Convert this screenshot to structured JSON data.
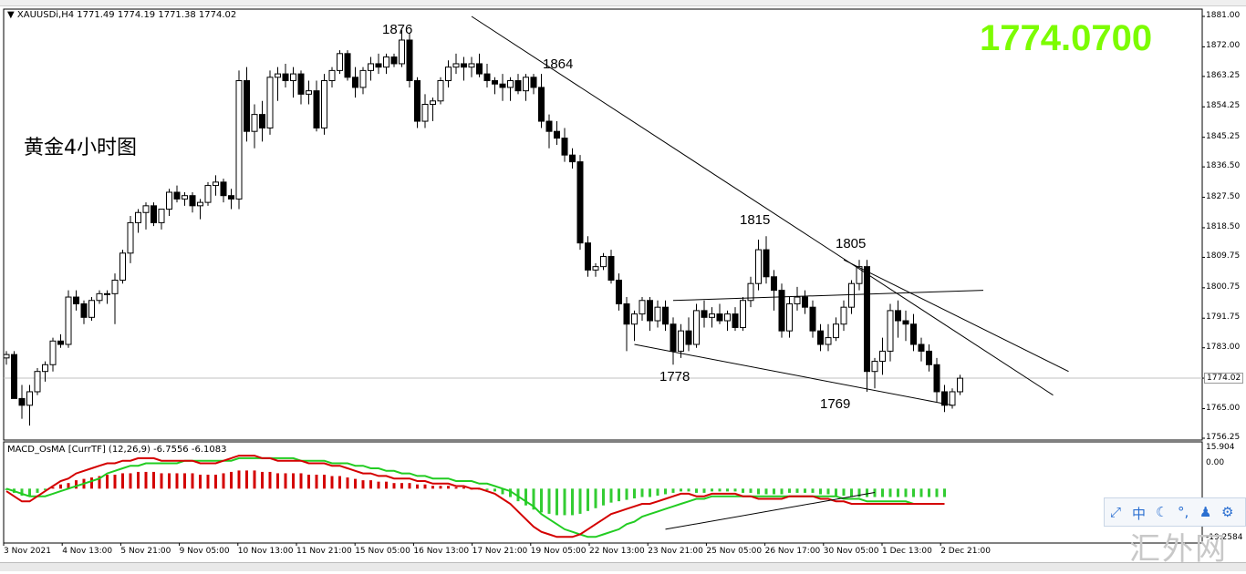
{
  "symbol_header": "XAUUSDi,H4 1771.49 1774.19 1771.38 1774.02",
  "chart_title": "黄金4小时图",
  "current_price_big": "1774.0700",
  "current_price_tag": "1774.02",
  "indicator_header": "MACD_OsMA [CurrTF] (12,26,9) -6.7556 -6.1083",
  "indicator_axis": [
    "15.904",
    "0.00",
    "-19.2584"
  ],
  "price_axis": [
    "1881.00",
    "1872.00",
    "1863.25",
    "1854.25",
    "1845.25",
    "1836.50",
    "1827.50",
    "1818.50",
    "1809.75",
    "1800.75",
    "1791.75",
    "1783.00",
    "1774.02",
    "1765.00",
    "1756.25"
  ],
  "date_axis": [
    "3 Nov 2021",
    "4 Nov 13:00",
    "5 Nov 21:00",
    "9 Nov 05:00",
    "10 Nov 13:00",
    "11 Nov 21:00",
    "15 Nov 05:00",
    "16 Nov 13:00",
    "17 Nov 21:00",
    "19 Nov 05:00",
    "22 Nov 13:00",
    "23 Nov 21:00",
    "25 Nov 05:00",
    "26 Nov 17:00",
    "30 Nov 05:00",
    "1 Dec 13:00",
    "2 Dec 21:00"
  ],
  "annotations": [
    "1876",
    "1864",
    "1815",
    "1805",
    "1778",
    "1769"
  ],
  "toolbar": {
    "chinese_label": "中"
  },
  "watermark": "汇外网",
  "colors": {
    "bull_candle": "#ffffff",
    "bear_candle": "#000000",
    "candle_outline": "#000000",
    "trendline": "#000000",
    "big_price": "#7cfc00",
    "macd_line": "#d40000",
    "signal_line": "#22cc22",
    "hist_positive": "#d40000",
    "hist_negative": "#33cc33",
    "current_price_line": "#c0c0c0"
  },
  "chart_data": [
    {
      "type": "candlestick",
      "title": "黄金4小时图",
      "symbol": "XAUUSDi",
      "timeframe": "H4",
      "ylim": [
        1756.25,
        1881.0
      ],
      "grid": false,
      "x_ticks": [
        "3 Nov 2021",
        "4 Nov 13:00",
        "5 Nov 21:00",
        "9 Nov 05:00",
        "10 Nov 13:00",
        "11 Nov 21:00",
        "15 Nov 05:00",
        "16 Nov 13:00",
        "17 Nov 21:00",
        "19 Nov 05:00",
        "22 Nov 13:00",
        "23 Nov 21:00",
        "25 Nov 05:00",
        "26 Nov 17:00",
        "30 Nov 05:00",
        "1 Dec 13:00",
        "2 Dec 21:00"
      ],
      "ohlc": [
        [
          1780,
          1782,
          1778,
          1781
        ],
        [
          1781,
          1782,
          1768,
          1768
        ],
        [
          1768,
          1772,
          1762,
          1766
        ],
        [
          1766,
          1772,
          1760,
          1770
        ],
        [
          1770,
          1777,
          1769,
          1776
        ],
        [
          1776,
          1779,
          1773,
          1778
        ],
        [
          1778,
          1786,
          1776,
          1785
        ],
        [
          1785,
          1787,
          1783,
          1784
        ],
        [
          1784,
          1800,
          1783,
          1798
        ],
        [
          1798,
          1800,
          1794,
          1796
        ],
        [
          1796,
          1797,
          1790,
          1792
        ],
        [
          1792,
          1798,
          1791,
          1797
        ],
        [
          1797,
          1800,
          1796,
          1799
        ],
        [
          1799,
          1800,
          1796,
          1799
        ],
        [
          1799,
          1805,
          1790,
          1803
        ],
        [
          1803,
          1812,
          1802,
          1811
        ],
        [
          1811,
          1822,
          1808,
          1820
        ],
        [
          1820,
          1824,
          1817,
          1823
        ],
        [
          1823,
          1826,
          1818,
          1825
        ],
        [
          1825,
          1826,
          1819,
          1820
        ],
        [
          1820,
          1824,
          1818,
          1824
        ],
        [
          1824,
          1830,
          1822,
          1829
        ],
        [
          1829,
          1831,
          1826,
          1827
        ],
        [
          1827,
          1829,
          1825,
          1828
        ],
        [
          1828,
          1829,
          1823,
          1825
        ],
        [
          1825,
          1827,
          1821,
          1826
        ],
        [
          1826,
          1832,
          1825,
          1831
        ],
        [
          1831,
          1834,
          1828,
          1832
        ],
        [
          1832,
          1833,
          1826,
          1828
        ],
        [
          1828,
          1830,
          1824,
          1827
        ],
        [
          1827,
          1865,
          1824,
          1862
        ],
        [
          1862,
          1866,
          1844,
          1847
        ],
        [
          1847,
          1855,
          1842,
          1852
        ],
        [
          1852,
          1856,
          1844,
          1848
        ],
        [
          1848,
          1865,
          1846,
          1863
        ],
        [
          1863,
          1866,
          1856,
          1864
        ],
        [
          1864,
          1867,
          1860,
          1862
        ],
        [
          1862,
          1866,
          1857,
          1864
        ],
        [
          1864,
          1865,
          1855,
          1858
        ],
        [
          1858,
          1862,
          1855,
          1859
        ],
        [
          1859,
          1862,
          1847,
          1848
        ],
        [
          1848,
          1864,
          1846,
          1862
        ],
        [
          1862,
          1866,
          1860,
          1865
        ],
        [
          1865,
          1871,
          1864,
          1870
        ],
        [
          1870,
          1871,
          1862,
          1863
        ],
        [
          1863,
          1866,
          1857,
          1860
        ],
        [
          1860,
          1866,
          1858,
          1865
        ],
        [
          1865,
          1869,
          1862,
          1867
        ],
        [
          1867,
          1870,
          1864,
          1866
        ],
        [
          1866,
          1870,
          1864,
          1869
        ],
        [
          1869,
          1870,
          1866,
          1867
        ],
        [
          1867,
          1877,
          1866,
          1874
        ],
        [
          1874,
          1876,
          1860,
          1862
        ],
        [
          1862,
          1863,
          1848,
          1850
        ],
        [
          1850,
          1858,
          1848,
          1855
        ],
        [
          1855,
          1857,
          1850,
          1856
        ],
        [
          1856,
          1863,
          1855,
          1862
        ],
        [
          1862,
          1868,
          1860,
          1866
        ],
        [
          1866,
          1870,
          1864,
          1867
        ],
        [
          1867,
          1869,
          1862,
          1866
        ],
        [
          1866,
          1869,
          1863,
          1867
        ],
        [
          1867,
          1870,
          1863,
          1864
        ],
        [
          1864,
          1867,
          1860,
          1862
        ],
        [
          1862,
          1863,
          1858,
          1861
        ],
        [
          1861,
          1864,
          1856,
          1860
        ],
        [
          1860,
          1863,
          1856,
          1862
        ],
        [
          1862,
          1864,
          1858,
          1859
        ],
        [
          1859,
          1864,
          1856,
          1863
        ],
        [
          1863,
          1864,
          1858,
          1860
        ],
        [
          1860,
          1864,
          1848,
          1850
        ],
        [
          1850,
          1852,
          1842,
          1847
        ],
        [
          1847,
          1850,
          1843,
          1845
        ],
        [
          1845,
          1848,
          1838,
          1840
        ],
        [
          1840,
          1842,
          1836,
          1838
        ],
        [
          1838,
          1840,
          1812,
          1814
        ],
        [
          1814,
          1816,
          1804,
          1806
        ],
        [
          1806,
          1808,
          1804,
          1807
        ],
        [
          1807,
          1811,
          1806,
          1810
        ],
        [
          1810,
          1812,
          1802,
          1803
        ],
        [
          1803,
          1805,
          1794,
          1796
        ],
        [
          1796,
          1798,
          1782,
          1790
        ],
        [
          1790,
          1794,
          1785,
          1793
        ],
        [
          1793,
          1798,
          1791,
          1797
        ],
        [
          1797,
          1798,
          1788,
          1791
        ],
        [
          1791,
          1797,
          1789,
          1795
        ],
        [
          1795,
          1797,
          1788,
          1790
        ],
        [
          1790,
          1792,
          1778,
          1782
        ],
        [
          1782,
          1790,
          1780,
          1788
        ],
        [
          1788,
          1792,
          1782,
          1784
        ],
        [
          1784,
          1796,
          1783,
          1794
        ],
        [
          1794,
          1797,
          1789,
          1792
        ],
        [
          1792,
          1795,
          1789,
          1793
        ],
        [
          1793,
          1796,
          1790,
          1791
        ],
        [
          1791,
          1794,
          1788,
          1793
        ],
        [
          1793,
          1795,
          1788,
          1789
        ],
        [
          1789,
          1798,
          1788,
          1797
        ],
        [
          1797,
          1804,
          1795,
          1802
        ],
        [
          1802,
          1815,
          1800,
          1812
        ],
        [
          1812,
          1816,
          1802,
          1804
        ],
        [
          1804,
          1806,
          1794,
          1800
        ],
        [
          1800,
          1802,
          1786,
          1788
        ],
        [
          1788,
          1798,
          1786,
          1796
        ],
        [
          1796,
          1801,
          1794,
          1798
        ],
        [
          1798,
          1800,
          1793,
          1795
        ],
        [
          1795,
          1797,
          1786,
          1788
        ],
        [
          1788,
          1790,
          1782,
          1784
        ],
        [
          1784,
          1790,
          1782,
          1786
        ],
        [
          1786,
          1792,
          1785,
          1790
        ],
        [
          1790,
          1797,
          1788,
          1795
        ],
        [
          1795,
          1803,
          1793,
          1802
        ],
        [
          1802,
          1809,
          1800,
          1807
        ],
        [
          1807,
          1809,
          1770,
          1776
        ],
        [
          1776,
          1780,
          1771,
          1779
        ],
        [
          1779,
          1786,
          1775,
          1782
        ],
        [
          1782,
          1796,
          1779,
          1794
        ],
        [
          1794,
          1797,
          1786,
          1791
        ],
        [
          1791,
          1794,
          1785,
          1790
        ],
        [
          1790,
          1793,
          1782,
          1784
        ],
        [
          1784,
          1786,
          1779,
          1782
        ],
        [
          1782,
          1784,
          1776,
          1778
        ],
        [
          1778,
          1780,
          1767,
          1770
        ],
        [
          1770,
          1772,
          1764,
          1766
        ],
        [
          1766,
          1771,
          1765,
          1770
        ],
        [
          1770,
          1775,
          1769,
          1774
        ]
      ]
    },
    {
      "type": "line",
      "title": "MACD_OsMA [CurrTF] (12,26,9)",
      "ylim": [
        -19.2584,
        15.904
      ],
      "series": [
        {
          "name": "MACD",
          "color": "#d40000",
          "values": [
            -1,
            -3,
            -5,
            -5,
            -3,
            -1,
            1,
            3,
            4,
            6,
            7,
            8,
            9,
            10,
            10,
            11,
            11,
            12,
            12,
            12,
            11,
            11,
            11,
            11,
            11,
            10,
            10,
            10,
            11,
            12,
            13,
            13,
            13,
            12,
            12,
            11,
            11,
            11,
            11,
            10,
            10,
            10,
            9,
            9,
            8,
            7,
            6,
            6,
            5,
            5,
            4,
            4,
            4,
            3,
            3,
            2,
            2,
            2,
            1,
            1,
            0,
            0,
            -1,
            -2,
            -4,
            -6,
            -9,
            -12,
            -15,
            -17,
            -18,
            -19,
            -19,
            -19,
            -18,
            -16,
            -14,
            -12,
            -10,
            -9,
            -8,
            -7,
            -6,
            -6,
            -5,
            -4,
            -3,
            -2,
            -2,
            -3,
            -3,
            -2,
            -2,
            -2,
            -2,
            -3,
            -3,
            -4,
            -4,
            -4,
            -4,
            -3,
            -3,
            -3,
            -3,
            -4,
            -4,
            -5,
            -5,
            -6,
            -6,
            -6,
            -6,
            -6,
            -6,
            -6,
            -6,
            -6,
            -6,
            -6,
            -6,
            -6
          ]
        },
        {
          "name": "Signal",
          "color": "#22cc22",
          "values": [
            0,
            -1,
            -2,
            -3,
            -3,
            -3,
            -2,
            -1,
            0,
            1,
            2,
            3,
            4,
            6,
            7,
            8,
            9,
            9,
            10,
            10,
            10,
            10,
            10,
            11,
            11,
            11,
            11,
            11,
            11,
            11,
            12,
            12,
            12,
            12,
            12,
            12,
            12,
            12,
            11,
            11,
            11,
            11,
            10,
            10,
            10,
            9,
            9,
            8,
            8,
            7,
            7,
            6,
            6,
            5,
            5,
            4,
            4,
            4,
            3,
            3,
            3,
            2,
            2,
            1,
            0,
            -1,
            -3,
            -5,
            -7,
            -10,
            -12,
            -14,
            -16,
            -17,
            -18,
            -19,
            -19,
            -18,
            -17,
            -16,
            -14,
            -13,
            -11,
            -10,
            -9,
            -8,
            -7,
            -6,
            -5,
            -4,
            -4,
            -3,
            -3,
            -3,
            -3,
            -3,
            -3,
            -3,
            -3,
            -3,
            -3,
            -3,
            -3,
            -3,
            -3,
            -3,
            -3,
            -3,
            -4,
            -4,
            -4,
            -5,
            -5,
            -5,
            -5,
            -5,
            -5,
            -6,
            -6,
            -6,
            -6,
            -6
          ]
        }
      ]
    }
  ]
}
